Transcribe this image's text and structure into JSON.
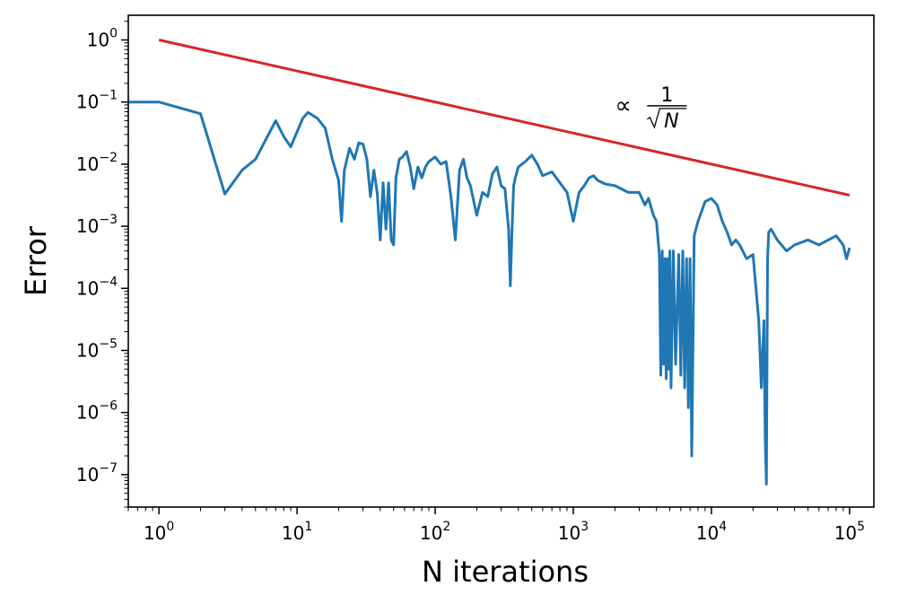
{
  "chart_data": {
    "type": "line",
    "xlabel": "N iterations",
    "ylabel": "Error",
    "xscale": "log",
    "yscale": "log",
    "xlim": [
      0.6,
      150000
    ],
    "ylim": [
      3e-08,
      2.5
    ],
    "grid": false,
    "x_ticks": [
      {
        "base": "10",
        "exp": "0",
        "value": 1
      },
      {
        "base": "10",
        "exp": "1",
        "value": 10
      },
      {
        "base": "10",
        "exp": "2",
        "value": 100
      },
      {
        "base": "10",
        "exp": "3",
        "value": 1000
      },
      {
        "base": "10",
        "exp": "4",
        "value": 10000
      },
      {
        "base": "10",
        "exp": "5",
        "value": 100000
      }
    ],
    "y_ticks": [
      {
        "base": "10",
        "exp": "0",
        "value": 1
      },
      {
        "base": "10",
        "exp": "−1",
        "value": 0.1
      },
      {
        "base": "10",
        "exp": "−2",
        "value": 0.01
      },
      {
        "base": "10",
        "exp": "−3",
        "value": 0.001
      },
      {
        "base": "10",
        "exp": "−4",
        "value": 0.0001
      },
      {
        "base": "10",
        "exp": "−5",
        "value": 1e-05
      },
      {
        "base": "10",
        "exp": "−6",
        "value": 1e-06
      },
      {
        "base": "10",
        "exp": "−7",
        "value": 1e-07
      }
    ],
    "annotation": {
      "prefix": "∝",
      "numerator": "1",
      "denominator": "N",
      "x": 2000,
      "y": 0.09
    },
    "series": [
      {
        "color": "#d62728",
        "x": [
          1,
          100000
        ],
        "y": [
          1,
          0.00316
        ]
      },
      {
        "color": "#1f77b4",
        "x": [
          0.6,
          1,
          2,
          3,
          4,
          5,
          7,
          8,
          9,
          11,
          12,
          14,
          16,
          18,
          20,
          21,
          22,
          24,
          26,
          28,
          30,
          32,
          34,
          36,
          38,
          40,
          42,
          44,
          46,
          48,
          50,
          52,
          55,
          58,
          62,
          66,
          70,
          75,
          80,
          85,
          90,
          95,
          100,
          110,
          120,
          130,
          140,
          150,
          160,
          170,
          180,
          200,
          220,
          240,
          260,
          280,
          300,
          320,
          340,
          350,
          360,
          370,
          380,
          400,
          450,
          500,
          550,
          600,
          700,
          800,
          900,
          1000,
          1100,
          1200,
          1300,
          1400,
          1500,
          1700,
          2000,
          2500,
          3000,
          3300,
          3500,
          3800,
          4000,
          4200,
          4300,
          4400,
          4500,
          4600,
          4700,
          4800,
          4900,
          5000,
          5100,
          5300,
          5500,
          5800,
          6000,
          6200,
          6400,
          6600,
          6800,
          7000,
          7200,
          7500,
          8000,
          9000,
          10000,
          11000,
          12000,
          13000,
          14000,
          15000,
          16000,
          18000,
          20000,
          22000,
          23000,
          24000,
          24500,
          25000,
          25500,
          26000,
          27000,
          30000,
          35000,
          40000,
          50000,
          60000,
          70000,
          80000,
          90000,
          95000,
          100000
        ],
        "y": [
          0.1,
          0.1,
          0.065,
          0.0033,
          0.008,
          0.012,
          0.05,
          0.028,
          0.019,
          0.055,
          0.068,
          0.055,
          0.038,
          0.012,
          0.0055,
          0.0012,
          0.008,
          0.018,
          0.012,
          0.022,
          0.021,
          0.012,
          0.003,
          0.008,
          0.0035,
          0.0006,
          0.005,
          0.0009,
          0.005,
          0.0006,
          0.0005,
          0.006,
          0.012,
          0.013,
          0.016,
          0.009,
          0.004,
          0.009,
          0.006,
          0.009,
          0.011,
          0.012,
          0.013,
          0.01,
          0.011,
          0.003,
          0.0006,
          0.008,
          0.012,
          0.006,
          0.0045,
          0.0015,
          0.0035,
          0.003,
          0.007,
          0.009,
          0.0045,
          0.004,
          0.0009,
          0.00011,
          0.0009,
          0.0045,
          0.006,
          0.009,
          0.011,
          0.014,
          0.01,
          0.0065,
          0.0075,
          0.005,
          0.0035,
          0.0012,
          0.0035,
          0.0045,
          0.006,
          0.0065,
          0.0055,
          0.0048,
          0.0045,
          0.0035,
          0.0035,
          0.0022,
          0.0028,
          0.0015,
          0.0012,
          0.00035,
          4e-06,
          0.0004,
          6e-06,
          0.0003,
          3.5e-06,
          0.0003,
          5e-06,
          0.0004,
          2.5e-06,
          0.0004,
          6e-06,
          0.00035,
          4e-06,
          0.0004,
          2.5e-06,
          0.0003,
          1.2e-06,
          0.0003,
          2e-07,
          0.0007,
          0.0012,
          0.0025,
          0.0028,
          0.0022,
          0.0012,
          0.0008,
          0.0005,
          0.0006,
          0.0005,
          0.0003,
          0.00035,
          3e-05,
          2.5e-06,
          3e-05,
          4e-07,
          7e-08,
          0.0003,
          0.0008,
          0.0009,
          0.0006,
          0.0004,
          0.0005,
          0.0006,
          0.0005,
          0.0006,
          0.0007,
          0.0005,
          0.0003,
          0.00045
        ]
      }
    ]
  }
}
